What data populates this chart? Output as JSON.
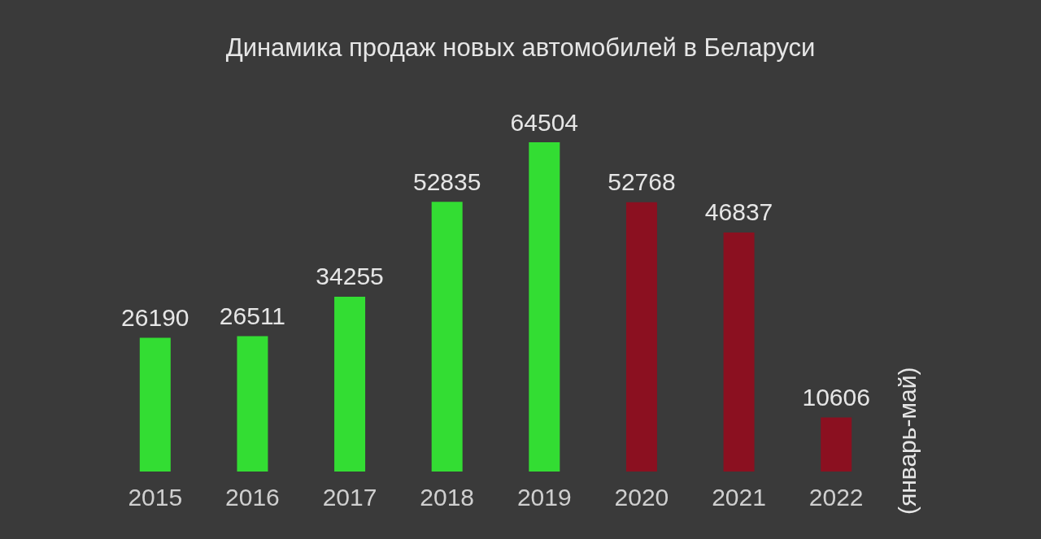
{
  "chart_data": {
    "type": "bar",
    "title": "Динамика продаж новых автомобилей в Беларуси",
    "categories": [
      "2015",
      "2016",
      "2017",
      "2018",
      "2019",
      "2020",
      "2021",
      "2022"
    ],
    "values": [
      26190,
      26511,
      34255,
      52835,
      64504,
      52768,
      46837,
      10606
    ],
    "colors": [
      "#33dd33",
      "#33dd33",
      "#33dd33",
      "#33dd33",
      "#33dd33",
      "#8b1020",
      "#8b1020",
      "#8b1020"
    ],
    "data_labels": true,
    "annotations": [
      "(январь-май)"
    ]
  }
}
